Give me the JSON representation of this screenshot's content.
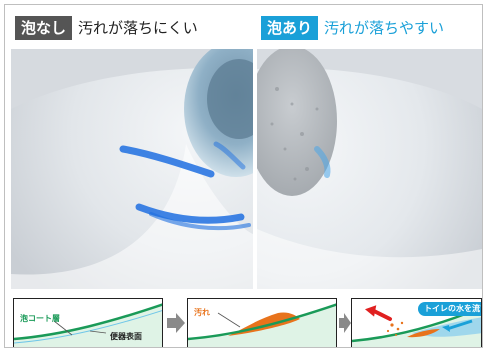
{
  "left_panel": {
    "tag": "泡なし",
    "caption": "汚れが落ちにくい"
  },
  "right_panel": {
    "tag": "泡あり",
    "caption": "汚れが落ちやすい"
  },
  "diagrams": {
    "step1": {
      "coat_label": "泡コート層",
      "surface_label": "便器表面"
    },
    "step2": {
      "dirt_label": "汚れ"
    },
    "step3": {
      "water_label": "トイレの水を流す"
    }
  },
  "colors": {
    "no_foam_tag": "#555555",
    "foam_tag": "#1aa0d8",
    "dirt": "#e8731c",
    "coat_green": "#1a9a58"
  }
}
